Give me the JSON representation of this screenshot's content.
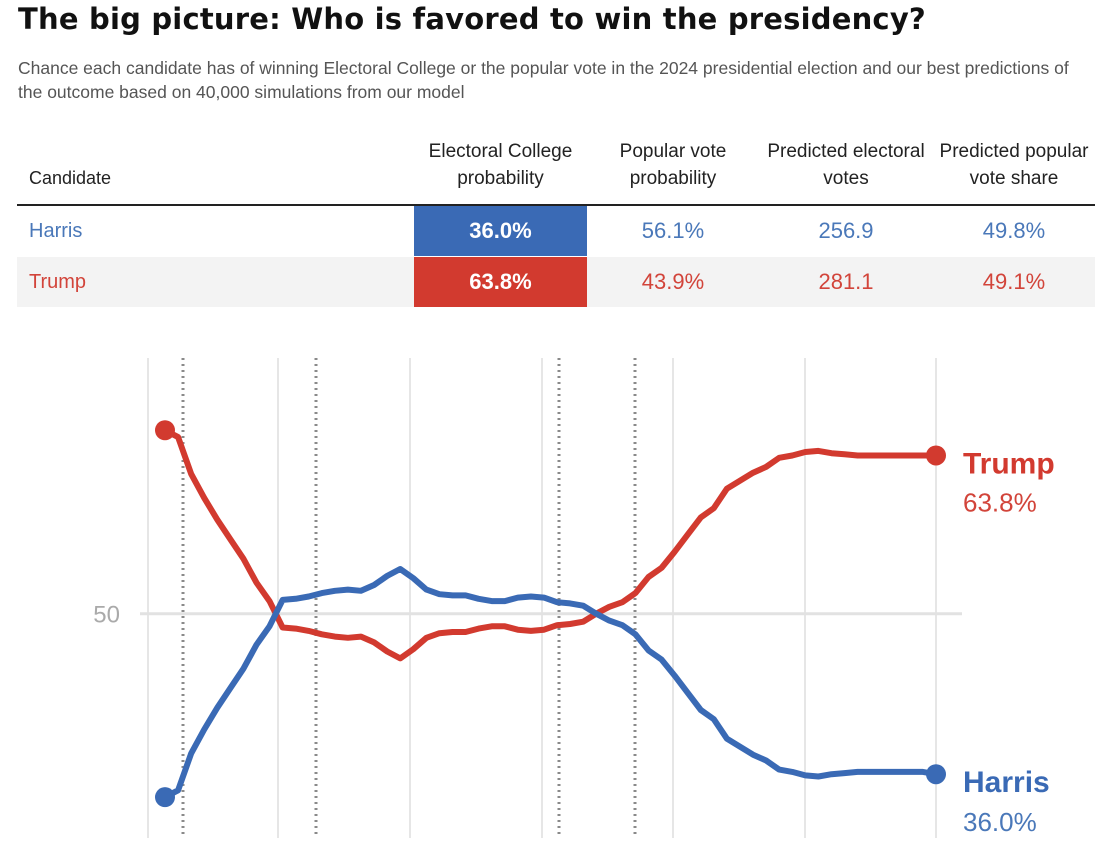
{
  "title": "The big picture: Who is favored to win the presidency?",
  "subtitle": "Chance each candidate has of winning Electoral College or the popular vote in the 2024 presidential election and our best predictions of the outcome based on 40,000 simulations from our model",
  "colors": {
    "harris": "#3a6ab5",
    "trump": "#d23a2f",
    "harris_text": "#4a78b9",
    "trump_text": "#d2443a"
  },
  "table": {
    "headers": [
      "Candidate",
      "Electoral College probability",
      "Popular vote probability",
      "Predicted electoral votes",
      "Predicted popular vote share"
    ],
    "rows": [
      {
        "candidate": "Harris",
        "ec_prob": "36.0%",
        "pop_prob": "56.1%",
        "ev": "256.9",
        "pop_share": "49.8%"
      },
      {
        "candidate": "Trump",
        "ec_prob": "63.8%",
        "pop_prob": "43.9%",
        "ev": "281.1",
        "pop_share": "49.1%"
      }
    ]
  },
  "chart_data": {
    "type": "line",
    "ytick": "50",
    "y_reference": 50,
    "ylim": [
      30,
      73
    ],
    "x": [
      0,
      1,
      2,
      3,
      4,
      5,
      6,
      7,
      8,
      9,
      10,
      11,
      12,
      13,
      14,
      15,
      16,
      17,
      18,
      19,
      20,
      21,
      22,
      23,
      24,
      25,
      26,
      27,
      28,
      29,
      30,
      31,
      32,
      33,
      34,
      35,
      36,
      37,
      38,
      39,
      40,
      41,
      42,
      43,
      44,
      45,
      46,
      47,
      48,
      49,
      50,
      51,
      52,
      53,
      54,
      55,
      56,
      57,
      58,
      59
    ],
    "series": [
      {
        "name": "Trump",
        "end_label": "63.8%",
        "values": [
          66.0,
          65.4,
          62.2,
          60.1,
          58.2,
          56.5,
          54.8,
          52.7,
          51.1,
          48.8,
          48.7,
          48.5,
          48.2,
          48.0,
          47.9,
          48.0,
          47.5,
          46.7,
          46.1,
          46.9,
          47.9,
          48.3,
          48.4,
          48.4,
          48.7,
          48.9,
          48.9,
          48.6,
          48.5,
          48.6,
          49.0,
          49.1,
          49.3,
          50.0,
          50.6,
          51.0,
          51.8,
          53.2,
          54.0,
          55.4,
          56.9,
          58.4,
          59.2,
          60.9,
          61.6,
          62.3,
          62.8,
          63.6,
          63.8,
          64.1,
          64.2,
          64.0,
          63.9,
          63.8,
          63.8,
          63.8,
          63.8,
          63.8,
          63.8,
          63.8
        ]
      },
      {
        "name": "Harris",
        "end_label": "36.0%",
        "values": [
          34.0,
          34.6,
          37.8,
          39.9,
          41.8,
          43.5,
          45.2,
          47.3,
          48.9,
          51.2,
          51.3,
          51.5,
          51.8,
          52.0,
          52.1,
          52.0,
          52.5,
          53.3,
          53.9,
          53.1,
          52.1,
          51.7,
          51.6,
          51.6,
          51.3,
          51.1,
          51.1,
          51.4,
          51.5,
          51.4,
          51.0,
          50.9,
          50.7,
          50.0,
          49.4,
          49.0,
          48.2,
          46.8,
          46.0,
          44.6,
          43.1,
          41.6,
          40.8,
          39.1,
          38.4,
          37.7,
          37.2,
          36.4,
          36.2,
          35.9,
          35.8,
          36.0,
          36.1,
          36.2,
          36.2,
          36.2,
          36.2,
          36.2,
          36.2,
          36.0
        ]
      }
    ]
  }
}
